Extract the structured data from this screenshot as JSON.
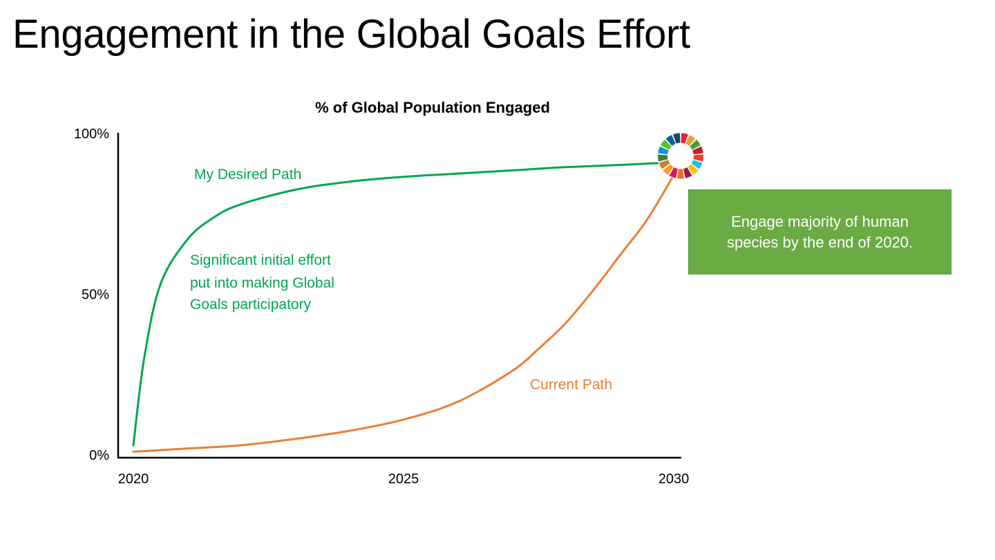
{
  "slide": {
    "title": "Engagement in the Global Goals Effort"
  },
  "callout": {
    "text": "Engage majority of human species by the end of 2020."
  },
  "colors": {
    "desired": "#00a651",
    "current": "#ed7d31",
    "axis": "#000000",
    "callout_bg": "#6aab43"
  },
  "chart_data": {
    "type": "line",
    "title": "% of Global Population Engaged",
    "xlabel": "",
    "ylabel": "",
    "xlim": [
      2020,
      2030
    ],
    "ylim": [
      0,
      100
    ],
    "x_ticks": [
      {
        "value": 2020,
        "label": "2020"
      },
      {
        "value": 2025,
        "label": "2025"
      },
      {
        "value": 2030,
        "label": "2030"
      }
    ],
    "y_ticks": [
      {
        "value": 0,
        "label": "0%"
      },
      {
        "value": 50,
        "label": "50%"
      },
      {
        "value": 100,
        "label": "100%"
      }
    ],
    "grid": false,
    "series": [
      {
        "name": "My Desired Path",
        "color": "#00a651",
        "x": [
          2020,
          2020.2,
          2020.5,
          2021,
          2021.5,
          2022,
          2023,
          2024,
          2025,
          2026,
          2027,
          2028,
          2029,
          2030
        ],
        "y": [
          3,
          30,
          53,
          67,
          74,
          78,
          82.5,
          85,
          86.5,
          87.5,
          88.5,
          89.5,
          90.2,
          91
        ]
      },
      {
        "name": "Current Path",
        "color": "#ed7d31",
        "x": [
          2020,
          2021,
          2022,
          2023,
          2024,
          2025,
          2026,
          2027,
          2027.5,
          2028,
          2028.5,
          2029,
          2029.5,
          2030
        ],
        "y": [
          1,
          2,
          3,
          5,
          7.5,
          11,
          16.5,
          26,
          33,
          41,
          51,
          62,
          73,
          87
        ]
      }
    ],
    "annotations": [
      {
        "text": "My Desired Path",
        "color": "#00a651"
      },
      {
        "text": "Significant initial effort",
        "color": "#00a651"
      },
      {
        "text": "put into making Global",
        "color": "#00a651"
      },
      {
        "text": "Goals participatory",
        "color": "#00a651"
      },
      {
        "text": "Current Path",
        "color": "#ed7d31"
      }
    ],
    "marker": {
      "name": "SDG color wheel",
      "x": 2030,
      "y": 93,
      "segment_colors": [
        "#e5243b",
        "#dda63a",
        "#4c9f38",
        "#c5192d",
        "#ff3a21",
        "#26bde2",
        "#fcc30b",
        "#a21942",
        "#fd6925",
        "#dd1367",
        "#fd9d24",
        "#bf8b2e",
        "#3f7e44",
        "#0a97d9",
        "#56c02b",
        "#00689d",
        "#19486a"
      ]
    }
  }
}
